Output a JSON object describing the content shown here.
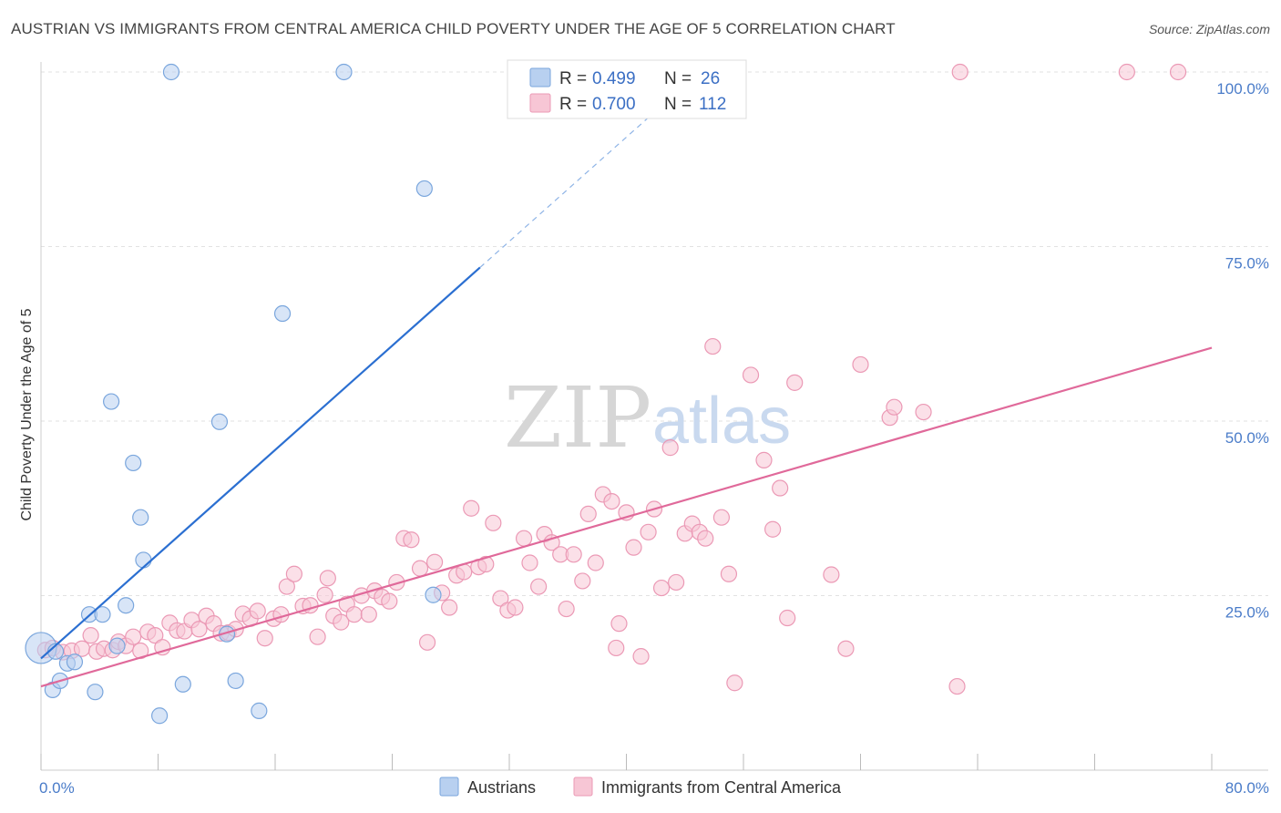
{
  "title": "AUSTRIAN VS IMMIGRANTS FROM CENTRAL AMERICA CHILD POVERTY UNDER THE AGE OF 5 CORRELATION CHART",
  "source": "Source: ZipAtlas.com",
  "watermark": {
    "part1": "ZIP",
    "part2": "atlas"
  },
  "colors": {
    "blue_fill": "#b8d0f0",
    "blue_stroke": "#7aa6dd",
    "blue_line": "#2b6fd1",
    "pink_fill": "#f7c6d5",
    "pink_stroke": "#eb99b5",
    "pink_line": "#e0699a",
    "axis_label": "#4a7cc9"
  },
  "legend": {
    "rows": [
      {
        "r_label": "R =",
        "r_value": "0.499",
        "n_label": "N =",
        "n_value": "26"
      },
      {
        "r_label": "R =",
        "r_value": "0.700",
        "n_label": "N =",
        "n_value": "112"
      }
    ]
  },
  "chart_data": {
    "type": "scatter",
    "title": "AUSTRIAN VS IMMIGRANTS FROM CENTRAL AMERICA CHILD POVERTY UNDER THE AGE OF 5 CORRELATION CHART",
    "xlabel": "",
    "ylabel": "Child Poverty Under the Age of 5",
    "xlim": [
      0,
      80
    ],
    "ylim": [
      0,
      100
    ],
    "x_tick_labels": [
      "0.0%",
      "80.0%"
    ],
    "y_ticks": [
      25,
      50,
      75,
      100
    ],
    "y_tick_labels": [
      "25.0%",
      "50.0%",
      "75.0%",
      "100.0%"
    ],
    "grid": true,
    "legend_position": "top-center",
    "series": [
      {
        "name": "Austrians",
        "r": 0.499,
        "n": 26,
        "trend": {
          "x0": 0,
          "y0": 16.0,
          "x1": 30,
          "y1": 72.0,
          "dashed_to_x": 45
        },
        "points": [
          [
            0,
            17.5,
            "big"
          ],
          [
            0.8,
            11.5
          ],
          [
            1.3,
            12.8
          ],
          [
            1.8,
            15.3
          ],
          [
            2.3,
            15.5
          ],
          [
            3.3,
            22.3
          ],
          [
            3.7,
            11.2
          ],
          [
            4.2,
            22.3
          ],
          [
            4.8,
            52.8
          ],
          [
            5.2,
            17.8
          ],
          [
            5.8,
            23.6
          ],
          [
            6.3,
            44.0
          ],
          [
            6.8,
            36.2
          ],
          [
            7.0,
            30.1
          ],
          [
            8.1,
            7.8
          ],
          [
            8.9,
            100
          ],
          [
            9.7,
            12.3
          ],
          [
            12.2,
            49.9
          ],
          [
            12.7,
            19.5
          ],
          [
            13.3,
            12.8
          ],
          [
            14.9,
            8.5
          ],
          [
            16.5,
            65.4
          ],
          [
            20.7,
            100
          ],
          [
            26.2,
            83.3
          ],
          [
            26.8,
            25.1
          ],
          [
            1.0,
            17.0
          ]
        ]
      },
      {
        "name": "Immigrants from Central America",
        "r": 0.7,
        "n": 112,
        "trend": {
          "x0": 0,
          "y0": 12.0,
          "x1": 80,
          "y1": 60.5
        },
        "points": [
          [
            0.3,
            17.2
          ],
          [
            0.8,
            17.5
          ],
          [
            1.5,
            16.9
          ],
          [
            2.1,
            17.1
          ],
          [
            2.8,
            17.4
          ],
          [
            3.4,
            19.3
          ],
          [
            3.8,
            17.0
          ],
          [
            4.3,
            17.4
          ],
          [
            4.9,
            17.2
          ],
          [
            5.3,
            18.4
          ],
          [
            5.8,
            17.8
          ],
          [
            6.3,
            19.1
          ],
          [
            6.8,
            17.1
          ],
          [
            7.3,
            19.8
          ],
          [
            7.8,
            19.3
          ],
          [
            8.3,
            17.6
          ],
          [
            8.8,
            21.1
          ],
          [
            9.3,
            20.0
          ],
          [
            9.8,
            19.9
          ],
          [
            10.3,
            21.5
          ],
          [
            10.8,
            20.2
          ],
          [
            11.3,
            22.1
          ],
          [
            11.8,
            21.0
          ],
          [
            12.3,
            19.6
          ],
          [
            12.8,
            19.7
          ],
          [
            13.3,
            20.2
          ],
          [
            13.8,
            22.4
          ],
          [
            14.3,
            21.7
          ],
          [
            14.8,
            22.8
          ],
          [
            15.3,
            18.9
          ],
          [
            15.9,
            21.7
          ],
          [
            16.4,
            22.3
          ],
          [
            16.8,
            26.3
          ],
          [
            17.3,
            28.1
          ],
          [
            17.9,
            23.5
          ],
          [
            18.4,
            23.6
          ],
          [
            18.9,
            19.1
          ],
          [
            19.4,
            25.1
          ],
          [
            19.6,
            27.5
          ],
          [
            20.0,
            22.1
          ],
          [
            20.5,
            21.2
          ],
          [
            20.9,
            23.8
          ],
          [
            21.4,
            22.3
          ],
          [
            21.9,
            25.0
          ],
          [
            22.4,
            22.3
          ],
          [
            22.8,
            25.7
          ],
          [
            23.3,
            24.8
          ],
          [
            23.8,
            24.2
          ],
          [
            24.3,
            26.9
          ],
          [
            24.8,
            33.2
          ],
          [
            25.3,
            33.0
          ],
          [
            25.9,
            28.9
          ],
          [
            26.4,
            18.3
          ],
          [
            26.9,
            29.8
          ],
          [
            27.4,
            25.4
          ],
          [
            27.9,
            23.3
          ],
          [
            28.4,
            27.9
          ],
          [
            28.9,
            28.4
          ],
          [
            29.4,
            37.5
          ],
          [
            29.9,
            29.1
          ],
          [
            30.4,
            29.5
          ],
          [
            30.9,
            35.4
          ],
          [
            31.4,
            24.6
          ],
          [
            31.9,
            22.9
          ],
          [
            32.4,
            23.3
          ],
          [
            33.0,
            33.2
          ],
          [
            33.4,
            29.7
          ],
          [
            34.0,
            26.3
          ],
          [
            34.4,
            33.8
          ],
          [
            34.9,
            32.6
          ],
          [
            35.5,
            30.9
          ],
          [
            35.9,
            23.1
          ],
          [
            36.4,
            30.9
          ],
          [
            37.0,
            27.1
          ],
          [
            37.4,
            36.7
          ],
          [
            37.9,
            29.7
          ],
          [
            38.4,
            39.5
          ],
          [
            39.0,
            38.5
          ],
          [
            39.5,
            21.0
          ],
          [
            40.0,
            36.9
          ],
          [
            40.5,
            31.9
          ],
          [
            41.0,
            16.3
          ],
          [
            41.5,
            34.1
          ],
          [
            41.9,
            37.4
          ],
          [
            42.4,
            26.1
          ],
          [
            43.0,
            46.2
          ],
          [
            43.4,
            26.9
          ],
          [
            44.0,
            33.9
          ],
          [
            44.5,
            35.3
          ],
          [
            45.0,
            34.1
          ],
          [
            45.4,
            33.2
          ],
          [
            45.9,
            60.7
          ],
          [
            46.5,
            36.2
          ],
          [
            47.0,
            28.1
          ],
          [
            47.4,
            12.5
          ],
          [
            48.5,
            56.6
          ],
          [
            49.4,
            44.4
          ],
          [
            50.0,
            34.5
          ],
          [
            50.5,
            40.4
          ],
          [
            51.0,
            21.8
          ],
          [
            51.5,
            55.5
          ],
          [
            54.0,
            28.0
          ],
          [
            55.0,
            17.4
          ],
          [
            56.0,
            58.1
          ],
          [
            58.0,
            50.5
          ],
          [
            58.3,
            52.0
          ],
          [
            60.3,
            51.3
          ],
          [
            62.6,
            12.0
          ],
          [
            62.8,
            100
          ],
          [
            74.2,
            100
          ],
          [
            77.7,
            100
          ],
          [
            39.3,
            17.5
          ]
        ]
      }
    ]
  },
  "bottom_legend": {
    "items": [
      "Austrians",
      "Immigrants from Central America"
    ]
  }
}
